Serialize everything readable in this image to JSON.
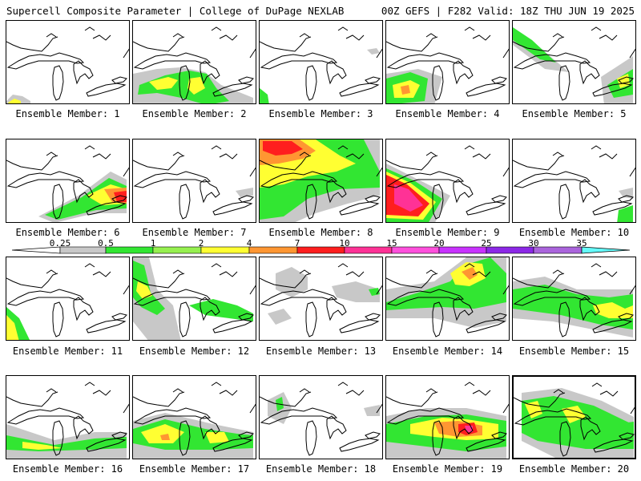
{
  "header": {
    "left": "Supercell Composite Parameter | College of DuPage NEXLAB",
    "right": "00Z GEFS | F282 Valid: 18Z THU JUN 19 2025"
  },
  "legend": {
    "ticks": [
      "0.25",
      "0.5",
      "1",
      "2",
      "4",
      "7",
      "10",
      "15",
      "20",
      "25",
      "30",
      "35"
    ],
    "colors": [
      "#c8c8c8",
      "#32e632",
      "#96f050",
      "#ffff32",
      "#ff9632",
      "#ff1e1e",
      "#ff3296",
      "#ff50dc",
      "#c832ff",
      "#8c28e6",
      "#aa64dc",
      "#64fafa"
    ]
  },
  "map": {
    "region": "Great Lakes",
    "coastline_color": "#000000"
  },
  "members": [
    {
      "label": "Ensemble Member: 1"
    },
    {
      "label": "Ensemble Member: 2"
    },
    {
      "label": "Ensemble Member: 3"
    },
    {
      "label": "Ensemble Member: 4"
    },
    {
      "label": "Ensemble Member: 5"
    },
    {
      "label": "Ensemble Member: 6"
    },
    {
      "label": "Ensemble Member: 7"
    },
    {
      "label": "Ensemble Member: 8"
    },
    {
      "label": "Ensemble Member: 9"
    },
    {
      "label": "Ensemble Member: 10"
    },
    {
      "label": "Ensemble Member: 11"
    },
    {
      "label": "Ensemble Member: 12"
    },
    {
      "label": "Ensemble Member: 13"
    },
    {
      "label": "Ensemble Member: 14"
    },
    {
      "label": "Ensemble Member: 15"
    },
    {
      "label": "Ensemble Member: 16"
    },
    {
      "label": "Ensemble Member: 17"
    },
    {
      "label": "Ensemble Member: 18"
    },
    {
      "label": "Ensemble Member: 19"
    },
    {
      "label": "Ensemble Member: 20"
    }
  ]
}
